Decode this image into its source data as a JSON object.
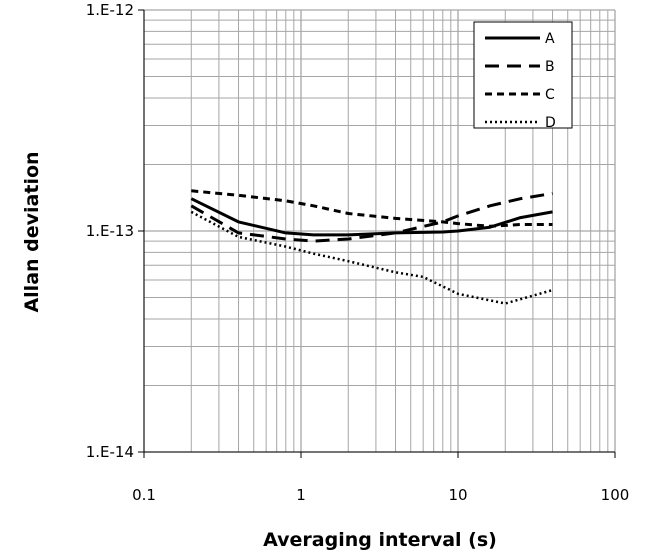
{
  "chart_data": {
    "type": "line",
    "title": "",
    "xlabel": "Averaging interval (s)",
    "ylabel": "Allan deviation",
    "xscale": "log",
    "yscale": "log",
    "xlim": [
      0.1,
      100
    ],
    "ylim": [
      1e-14,
      1e-12
    ],
    "xticks": [
      0.1,
      1,
      10,
      100
    ],
    "xtick_labels": [
      "0.1",
      "1",
      "10",
      "100"
    ],
    "yticks": [
      1e-14,
      1e-13,
      1e-12
    ],
    "ytick_labels": [
      "1.E-14",
      "1.E-13",
      "1.E-12"
    ],
    "grid": true,
    "legend_position": "top-right",
    "series": [
      {
        "name": "A",
        "style": "solid",
        "x": [
          0.2,
          0.4,
          0.8,
          1.2,
          2,
          4,
          8,
          10,
          16,
          25,
          40
        ],
        "y": [
          1.4e-13,
          1.1e-13,
          9.8e-14,
          9.6e-14,
          9.6e-14,
          9.8e-14,
          9.9e-14,
          1e-13,
          1.04e-13,
          1.15e-13,
          1.22e-13
        ]
      },
      {
        "name": "B",
        "style": "dashed-long",
        "x": [
          0.2,
          0.4,
          0.8,
          1.2,
          2,
          4,
          8,
          10,
          16,
          25,
          40
        ],
        "y": [
          1.3e-13,
          9.8e-14,
          9.2e-14,
          9e-14,
          9.2e-14,
          9.8e-14,
          1.1e-13,
          1.17e-13,
          1.3e-13,
          1.4e-13,
          1.48e-13
        ]
      },
      {
        "name": "C",
        "style": "dashed-short",
        "x": [
          0.2,
          0.4,
          0.8,
          1.2,
          2,
          4,
          8,
          10,
          16,
          25,
          40
        ],
        "y": [
          1.52e-13,
          1.45e-13,
          1.37e-13,
          1.3e-13,
          1.2e-13,
          1.14e-13,
          1.1e-13,
          1.08e-13,
          1.05e-13,
          1.07e-13,
          1.07e-13
        ]
      },
      {
        "name": "D",
        "style": "dotted",
        "x": [
          0.2,
          0.4,
          0.8,
          1.2,
          2,
          4,
          6,
          10,
          20,
          40
        ],
        "y": [
          1.22e-13,
          9.4e-14,
          8.5e-14,
          7.9e-14,
          7.3e-14,
          6.5e-14,
          6.2e-14,
          5.2e-14,
          4.7e-14,
          5.4e-14
        ]
      }
    ]
  },
  "colors": {
    "series": "#000000",
    "grid": "#a6a6a6",
    "axis": "#000000",
    "background": "#ffffff"
  }
}
